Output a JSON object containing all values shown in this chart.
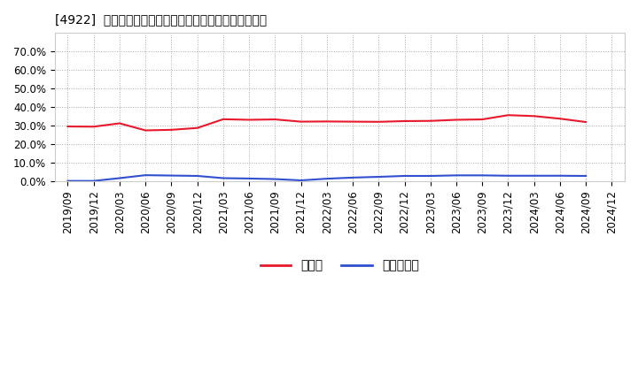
{
  "title": "[4922]  現預金、有利子負債の総資産に対する比率の推移",
  "ylim": [
    0.0,
    0.8
  ],
  "yticks": [
    0.0,
    0.1,
    0.2,
    0.3,
    0.4,
    0.5,
    0.6,
    0.7
  ],
  "ytick_labels": [
    "0.0%",
    "10.0%",
    "20.0%",
    "30.0%",
    "40.0%",
    "50.0%",
    "60.0%",
    "70.0%"
  ],
  "x_labels": [
    "2019/09",
    "2019/12",
    "2020/03",
    "2020/06",
    "2020/09",
    "2020/12",
    "2021/03",
    "2021/06",
    "2021/09",
    "2021/12",
    "2022/03",
    "2022/06",
    "2022/09",
    "2022/12",
    "2023/03",
    "2023/06",
    "2023/09",
    "2023/12",
    "2024/03",
    "2024/06",
    "2024/09",
    "2024/12"
  ],
  "cash_values": [
    0.296,
    0.295,
    0.313,
    0.275,
    0.278,
    0.288,
    0.335,
    0.332,
    0.334,
    0.322,
    0.323,
    0.322,
    0.321,
    0.325,
    0.326,
    0.332,
    0.334,
    0.357,
    0.352,
    0.338,
    0.32,
    null
  ],
  "debt_values": [
    0.003,
    0.003,
    0.018,
    0.034,
    0.032,
    0.03,
    0.018,
    0.016,
    0.013,
    0.006,
    0.015,
    0.021,
    0.025,
    0.03,
    0.03,
    0.033,
    0.033,
    0.031,
    0.031,
    0.031,
    0.03,
    null
  ],
  "cash_color": "#e8192c",
  "debt_color": "#3050d0",
  "legend_cash": "現預金",
  "legend_debt": "有利子負債",
  "bg_color": "#ffffff",
  "grid_color": "#aaaaaa",
  "title_fontsize": 12,
  "tick_fontsize": 8.5,
  "legend_fontsize": 10
}
